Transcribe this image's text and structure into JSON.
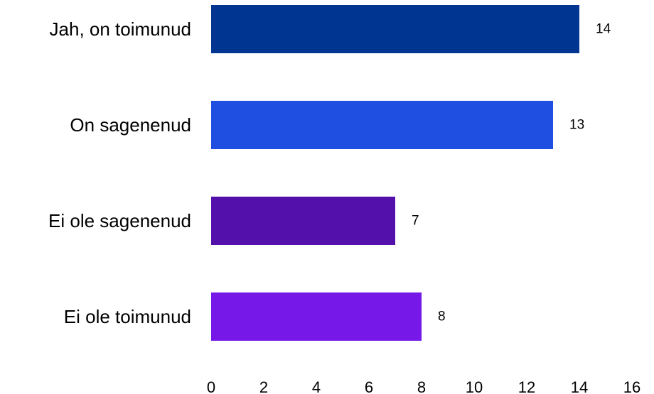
{
  "chart_data": {
    "type": "bar",
    "orientation": "horizontal",
    "categories": [
      "Jah, on toimunud",
      "On sagenenud",
      "Ei ole sagenenud",
      "Ei ole toimunud"
    ],
    "values": [
      14,
      13,
      7,
      8
    ],
    "colors": [
      "#003591",
      "#1f4fe0",
      "#5310ab",
      "#7518e8"
    ],
    "title": "",
    "xlabel": "",
    "ylabel": "",
    "xlim": [
      0,
      16
    ],
    "xticks": [
      0,
      2,
      4,
      6,
      8,
      10,
      12,
      14,
      16
    ],
    "grid": false,
    "legend": "none",
    "data_labels": true
  }
}
